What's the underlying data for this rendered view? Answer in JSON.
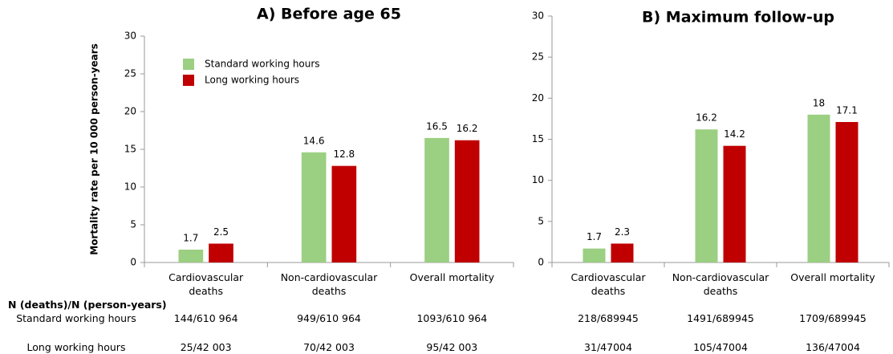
{
  "chart_data": [
    {
      "type": "bar",
      "title": "A) Before age 65",
      "y_label": "Mortality rate per 10 000 person-years",
      "categories": [
        "Cardiovascular deaths",
        "Non-cardiovascular deaths",
        "Overall mortality"
      ],
      "series": [
        {
          "name": "Standard working hours",
          "color": "#9bcf82",
          "values": [
            1.7,
            14.6,
            16.5
          ]
        },
        {
          "name": "Long working hours",
          "color": "#c00000",
          "values": [
            2.5,
            12.8,
            16.2
          ]
        }
      ],
      "ylim": [
        0,
        30
      ],
      "yticks": [
        0,
        5,
        10,
        15,
        20,
        25,
        30
      ]
    },
    {
      "type": "bar",
      "title": "B) Maximum follow-up",
      "categories": [
        "Cardiovascular deaths",
        "Non-cardiovascular deaths",
        "Overall mortality"
      ],
      "series": [
        {
          "color": "#9bcf82",
          "values": [
            1.7,
            16.2,
            18
          ]
        },
        {
          "color": "#c00000",
          "values": [
            2.3,
            14.2,
            17.1
          ]
        }
      ],
      "ylim": [
        0,
        30
      ],
      "yticks": [
        0,
        5,
        10,
        15,
        20,
        25,
        30
      ]
    }
  ],
  "table": {
    "header": "N (deaths)/N (person-years)",
    "rows": [
      {
        "label": "Standard working hours",
        "cells": [
          "144/610 964",
          "949/610 964",
          "1093/610 964",
          "218/689945",
          "1491/689945",
          "1709/689945"
        ]
      },
      {
        "label": "Long working hours",
        "cells": [
          "25/42 003",
          "70/42 003",
          "95/42 003",
          "31/47004",
          "105/47004",
          "136/47004"
        ]
      }
    ]
  }
}
